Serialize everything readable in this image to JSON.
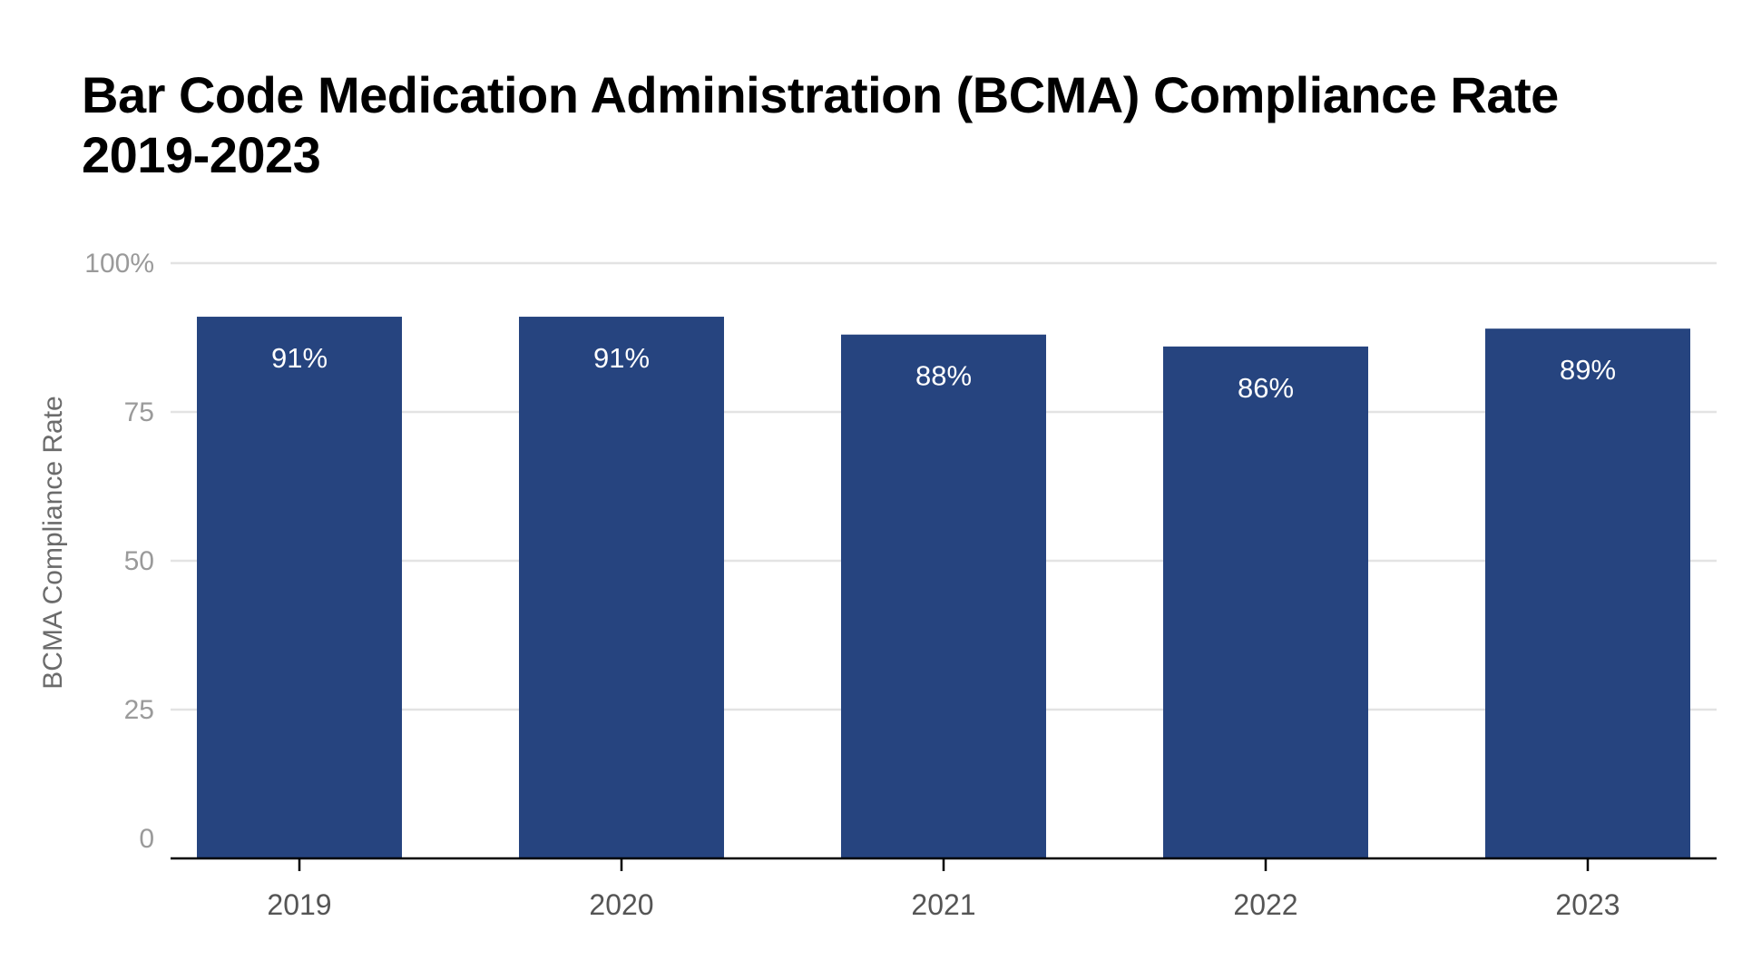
{
  "chart_data": {
    "type": "bar",
    "title_line1": "Bar Code Medication Administration (BCMA) Compliance Rate",
    "title_line2": "2019-2023",
    "ylabel": "BCMA Compliance Rate",
    "xlabel": "",
    "categories": [
      "2019",
      "2020",
      "2021",
      "2022",
      "2023"
    ],
    "values": [
      91,
      91,
      88,
      86,
      89
    ],
    "data_labels": [
      "91%",
      "91%",
      "88%",
      "86%",
      "89%"
    ],
    "ylim": [
      0,
      100
    ],
    "yticks": [
      0,
      25,
      50,
      75,
      100
    ],
    "ytick_labels": [
      "0",
      "25",
      "50",
      "75",
      "100%"
    ],
    "grid": true,
    "legend": "none",
    "colors": {
      "bar": "#26447f",
      "grid": "#e3e3e3",
      "axis": "#000000"
    }
  }
}
